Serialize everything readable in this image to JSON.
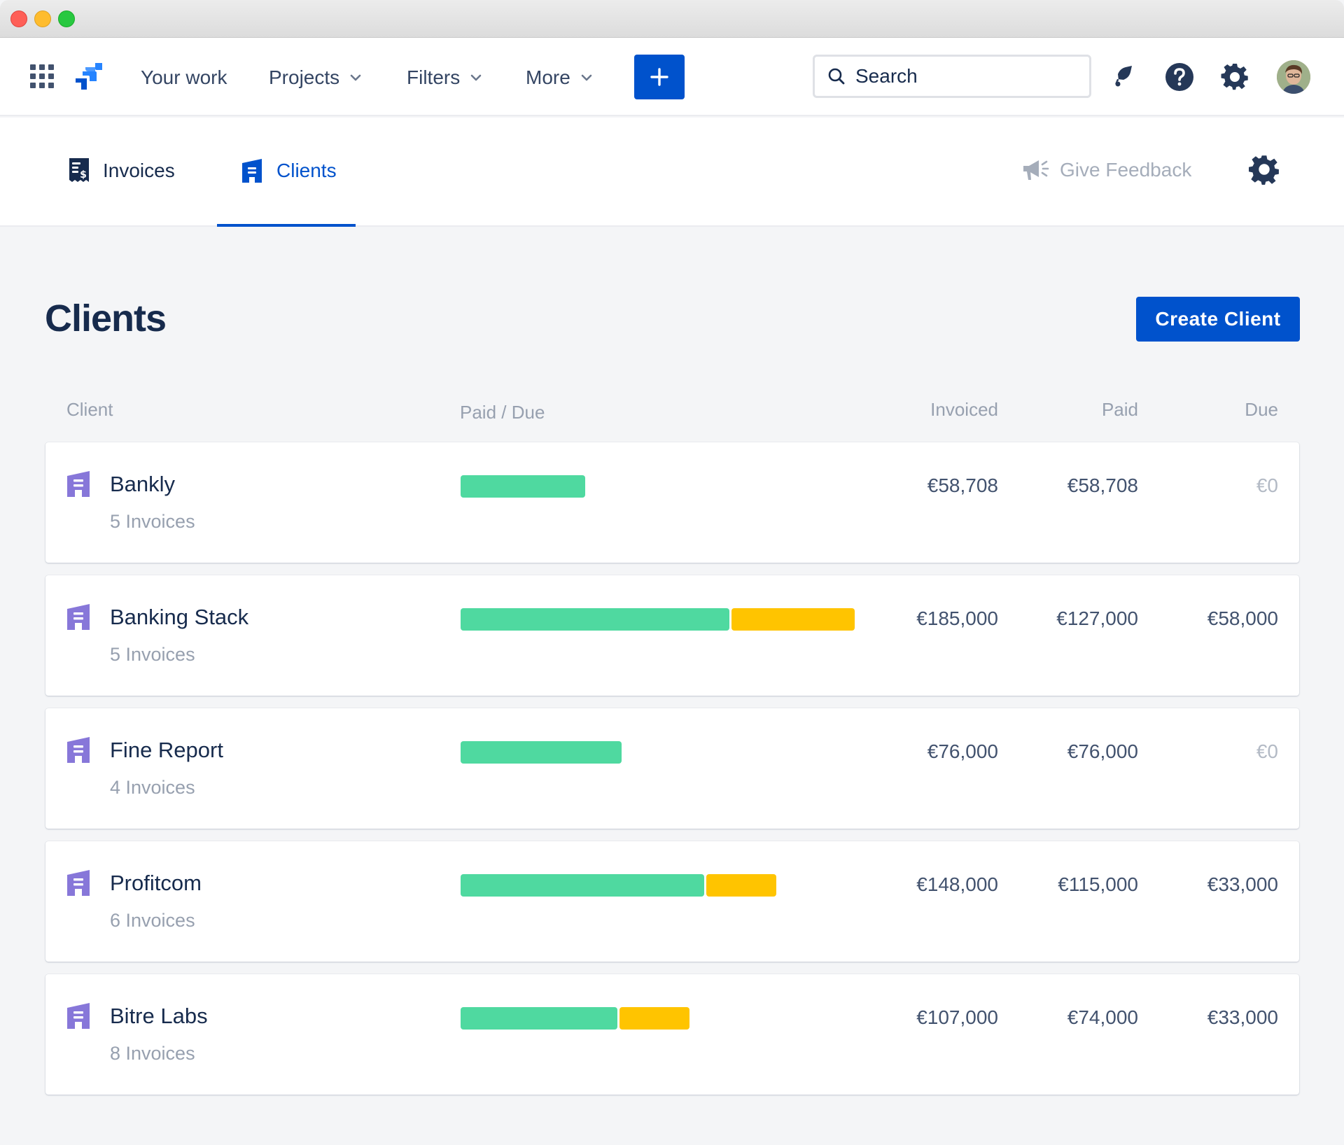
{
  "top_nav": {
    "items": [
      {
        "label": "Your work",
        "has_dropdown": false
      },
      {
        "label": "Projects",
        "has_dropdown": true
      },
      {
        "label": "Filters",
        "has_dropdown": true
      },
      {
        "label": "More",
        "has_dropdown": true
      }
    ],
    "create_icon": "plus-icon",
    "search_placeholder": "Search",
    "icons": [
      "notifications-icon",
      "help-icon",
      "settings-icon",
      "avatar"
    ]
  },
  "sub_nav": {
    "tabs": [
      {
        "label": "Invoices",
        "icon": "invoice-icon",
        "active": false
      },
      {
        "label": "Clients",
        "icon": "client-building-icon",
        "active": true
      }
    ],
    "feedback_label": "Give Feedback"
  },
  "page": {
    "title": "Clients",
    "create_button": "Create Client"
  },
  "table": {
    "columns": {
      "client": "Client",
      "paid_due": "Paid / Due",
      "invoiced": "Invoiced",
      "paid": "Paid",
      "due": "Due"
    },
    "rows": [
      {
        "name": "Bankly",
        "invoices": "5 Invoices",
        "invoiced": "€58,708",
        "paid": "€58,708",
        "due": "€0",
        "invoiced_value": 58708,
        "paid_value": 58708,
        "due_value": 0
      },
      {
        "name": "Banking Stack",
        "invoices": "5 Invoices",
        "invoiced": "€185,000",
        "paid": "€127,000",
        "due": "€58,000",
        "invoiced_value": 185000,
        "paid_value": 127000,
        "due_value": 58000
      },
      {
        "name": "Fine Report",
        "invoices": "4 Invoices",
        "invoiced": "€76,000",
        "paid": "€76,000",
        "due": "€0",
        "invoiced_value": 76000,
        "paid_value": 76000,
        "due_value": 0
      },
      {
        "name": "Profitcom",
        "invoices": "6 Invoices",
        "invoiced": "€148,000",
        "paid": "€115,000",
        "due": "€33,000",
        "invoiced_value": 148000,
        "paid_value": 115000,
        "due_value": 33000
      },
      {
        "name": "Bitre Labs",
        "invoices": "8 Invoices",
        "invoiced": "€107,000",
        "paid": "€74,000",
        "due": "€33,000",
        "invoiced_value": 107000,
        "paid_value": 74000,
        "due_value": 33000
      }
    ]
  },
  "colors": {
    "primary": "#0052cc",
    "paid_bar": "#4fd9a0",
    "due_bar": "#ffc400",
    "client_icon": "#8777d9"
  }
}
